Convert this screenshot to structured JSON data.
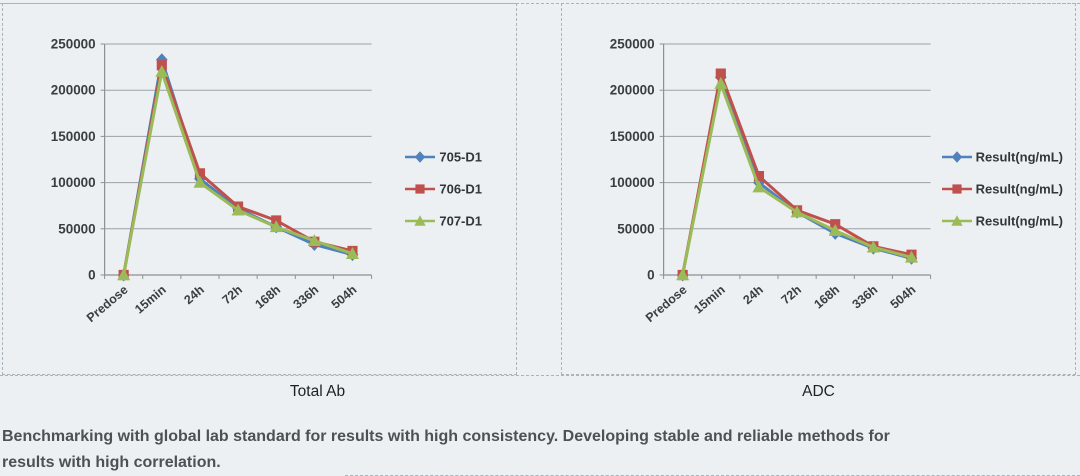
{
  "caption": {
    "line1": "Benchmarking with global lab standard for results with high consistency. Developing stable and reliable methods for",
    "line2": "results with high correlation."
  },
  "colors": {
    "series_blue": "#4F81BD",
    "series_red": "#C0504D",
    "series_green": "#9BBB59",
    "gridline": "#9da1a4",
    "axis": "#8c9194",
    "tick_text": "#3b3e41",
    "panel_border": "#a9b3bb",
    "background": "#edf0f2",
    "caption_text": "#4d5156"
  },
  "chart_data": [
    {
      "type": "line",
      "title": "Total Ab",
      "categories": [
        "Predose",
        "15min",
        "24h",
        "72h",
        "168h",
        "336h",
        "504h"
      ],
      "xlabel": "",
      "ylabel": "",
      "ylim": [
        0,
        250000
      ],
      "ytick_step": 50000,
      "ytick_labels": [
        "0",
        "50000",
        "100000",
        "150000",
        "200000",
        "250000"
      ],
      "grid": true,
      "legend_position": "right",
      "series": [
        {
          "name": "705-D1",
          "color": "#4F81BD",
          "marker": "diamond",
          "values": [
            0,
            233000,
            104000,
            72000,
            52000,
            33000,
            22000
          ]
        },
        {
          "name": "706-D1",
          "color": "#C0504D",
          "marker": "square",
          "values": [
            0,
            227000,
            110000,
            74000,
            59000,
            36000,
            26000
          ]
        },
        {
          "name": "707-D1",
          "color": "#9BBB59",
          "marker": "triangle",
          "values": [
            0,
            220000,
            100000,
            70000,
            52000,
            37000,
            23000
          ]
        }
      ]
    },
    {
      "type": "line",
      "title": "ADC",
      "categories": [
        "Predose",
        "15min",
        "24h",
        "72h",
        "168h",
        "336h",
        "504h"
      ],
      "xlabel": "",
      "ylabel": "",
      "ylim": [
        0,
        250000
      ],
      "ytick_step": 50000,
      "ytick_labels": [
        "0",
        "50000",
        "100000",
        "150000",
        "200000",
        "250000"
      ],
      "grid": true,
      "legend_position": "right",
      "series": [
        {
          "name": "Result(ng/mL)",
          "color": "#4F81BD",
          "marker": "diamond",
          "values": [
            0,
            214000,
            100000,
            68000,
            45000,
            29000,
            18000
          ]
        },
        {
          "name": "Result(ng/mL)",
          "color": "#C0504D",
          "marker": "square",
          "values": [
            0,
            218000,
            107000,
            70000,
            55000,
            31000,
            22000
          ]
        },
        {
          "name": "Result(ng/mL)",
          "color": "#9BBB59",
          "marker": "triangle",
          "values": [
            0,
            207000,
            95000,
            68000,
            48000,
            30000,
            19000
          ]
        }
      ]
    }
  ]
}
